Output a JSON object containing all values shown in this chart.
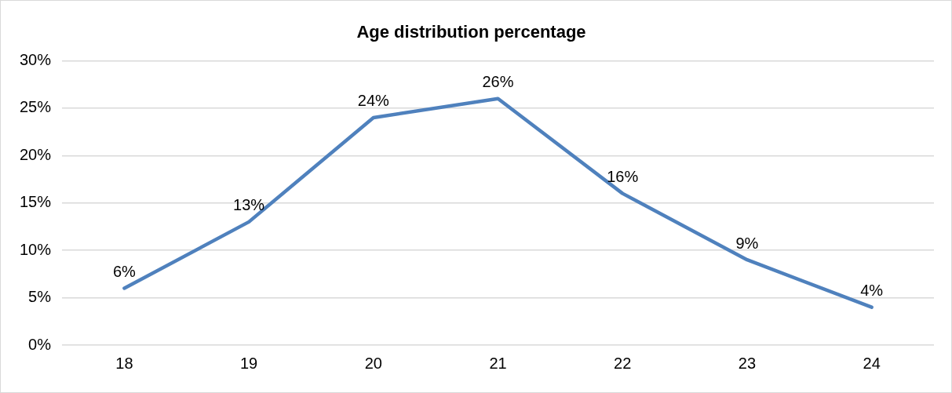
{
  "chart_data": {
    "type": "line",
    "title": "Age distribution percentage",
    "categories": [
      "18",
      "19",
      "20",
      "21",
      "22",
      "23",
      "24"
    ],
    "series": [
      {
        "color": "#4f81bd",
        "values": [
          6,
          13,
          24,
          26,
          16,
          9,
          4
        ],
        "value_labels": [
          "6%",
          "13%",
          "24%",
          "26%",
          "16%",
          "9%",
          "4%"
        ]
      }
    ],
    "ylim": [
      0,
      30
    ],
    "yticks": [
      {
        "value": 0,
        "label": "0%"
      },
      {
        "value": 5,
        "label": "5%"
      },
      {
        "value": 10,
        "label": "10%"
      },
      {
        "value": 15,
        "label": "15%"
      },
      {
        "value": 20,
        "label": "20%"
      },
      {
        "value": 25,
        "label": "25%"
      },
      {
        "value": 30,
        "label": "30%"
      }
    ],
    "grid": "y",
    "legend": false,
    "marker": "none",
    "line_style": "solid"
  }
}
